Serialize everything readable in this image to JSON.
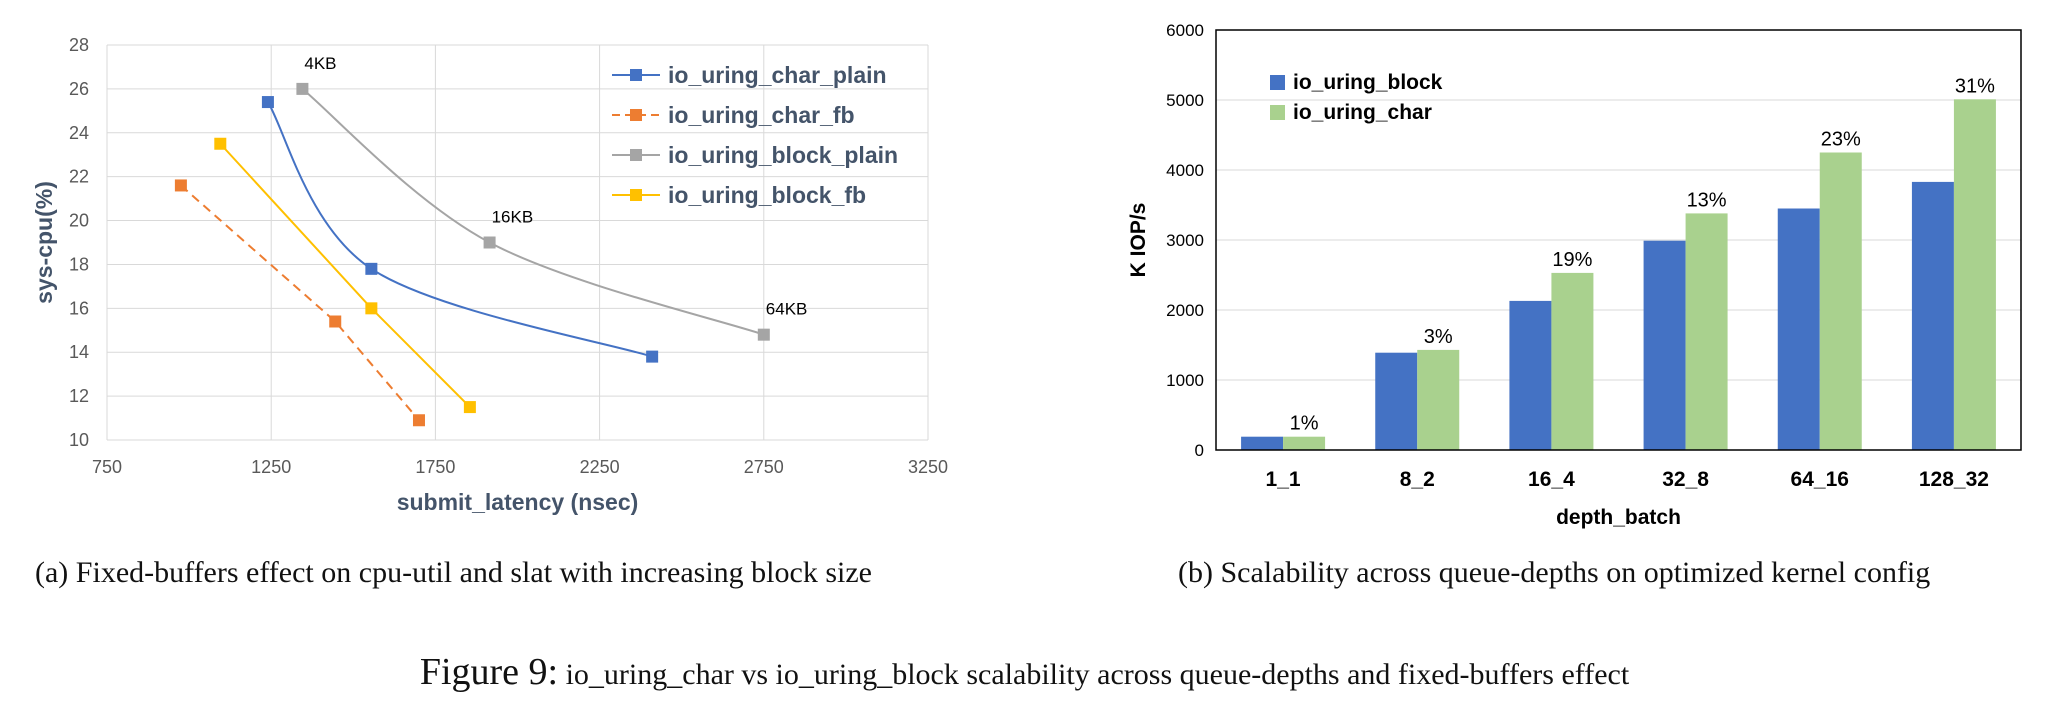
{
  "chart_data": [
    {
      "type": "line",
      "xlabel": "submit_latency (nsec)",
      "ylabel": "sys-cpu(%)",
      "xlim": [
        750,
        3250
      ],
      "ylim": [
        10,
        28
      ],
      "x_ticks": [
        "750",
        "1250",
        "1750",
        "2250",
        "2750",
        "3250"
      ],
      "y_ticks": [
        "10",
        "12",
        "14",
        "16",
        "18",
        "20",
        "22",
        "24",
        "26",
        "28"
      ],
      "grid": true,
      "legend": "top-right",
      "series": [
        {
          "name": "io_uring_char_plain",
          "color": "#4472C4",
          "dash": false,
          "points": [
            [
              1240,
              25.4
            ],
            [
              1555,
              17.8
            ],
            [
              2410,
              13.8
            ]
          ]
        },
        {
          "name": "io_uring_char_fb",
          "color": "#ED7D31",
          "dash": true,
          "points": [
            [
              975,
              21.6
            ],
            [
              1445,
              15.4
            ],
            [
              1700,
              10.9
            ]
          ]
        },
        {
          "name": "io_uring_block_plain",
          "color": "#A5A5A5",
          "dash": false,
          "points": [
            [
              1345,
              26.0
            ],
            [
              1915,
              19.0
            ],
            [
              2750,
              14.8
            ]
          ]
        },
        {
          "name": "io_uring_block_fb",
          "color": "#FFC000",
          "dash": false,
          "points": [
            [
              1095,
              23.5
            ],
            [
              1555,
              16.0
            ],
            [
              1855,
              11.5
            ]
          ]
        }
      ],
      "annotations": [
        {
          "text": "4KB",
          "x": 1345,
          "y": 26.0
        },
        {
          "text": "16KB",
          "x": 1915,
          "y": 19.0
        },
        {
          "text": "64KB",
          "x": 2750,
          "y": 14.8
        }
      ]
    },
    {
      "type": "bar",
      "xlabel": "depth_batch",
      "ylabel": "K IOP/s",
      "ylim": [
        0,
        6000
      ],
      "y_ticks": [
        "0",
        "1000",
        "2000",
        "3000",
        "4000",
        "5000",
        "6000"
      ],
      "categories": [
        "1_1",
        "8_2",
        "16_4",
        "32_8",
        "64_16",
        "128_32"
      ],
      "grid": true,
      "legend": "top-left",
      "series": [
        {
          "name": "io_uring_block",
          "color": "#4472C4",
          "values": [
            190,
            1390,
            2130,
            2990,
            3450,
            3830
          ]
        },
        {
          "name": "io_uring_char",
          "color": "#A9D18E",
          "values": [
            190,
            1430,
            2530,
            3380,
            4250,
            5010
          ]
        }
      ],
      "data_labels": [
        "1%",
        "3%",
        "19%",
        "13%",
        "23%",
        "31%"
      ]
    }
  ],
  "captions": {
    "a": "(a)  Fixed-buffers effect on cpu-util and slat with increasing block size",
    "b": "(b)  Scalability across queue-depths on optimized kernel config"
  },
  "figure": {
    "label": "Figure 9:",
    "text": " io_uring_char vs io_uring_block scalability across queue-depths and fixed-buffers effect"
  }
}
